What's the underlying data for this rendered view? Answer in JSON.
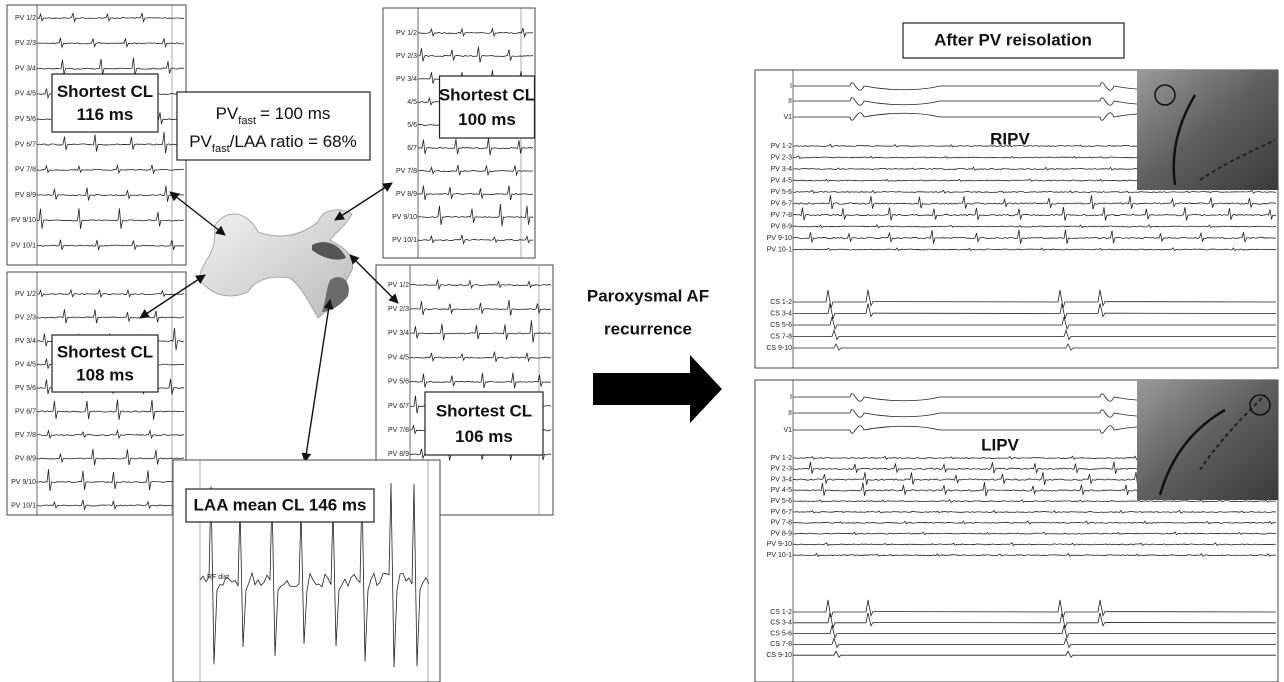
{
  "panels": [
    {
      "channels": [
        "PV 1/2",
        "PV 2/3",
        "PV 3/4",
        "PV 4/5",
        "PV 5/6",
        "PV 6/7",
        "PV 7/8",
        "PV 8/9",
        "PV 9/10",
        "PV 10/1"
      ],
      "callout": [
        "Shortest CL",
        "116 ms"
      ]
    },
    {
      "channels": [
        "PV 1/2",
        "PV 2/3",
        "PV 3/4",
        "4/5",
        "5/6",
        "6/7",
        "PV 7/8",
        "PV 8/9",
        "PV 9/10",
        "PV 10/1"
      ],
      "callout": [
        "Shortest CL",
        "100 ms"
      ]
    },
    {
      "channels": [
        "PV 1/2",
        "PV 2/3",
        "PV 3/4",
        "PV 4/5",
        "PV 5/6",
        "PV 6/7",
        "PV 7/8",
        "PV 8/9",
        "PV 9/10",
        "PV 10/1"
      ],
      "callout": [
        "Shortest CL",
        "108 ms"
      ]
    },
    {
      "channels": [
        "PV 1/2",
        "PV 2/3",
        "PV 3/4",
        "PV 4/5",
        "PV 5/6",
        "PV 6/7",
        "PV 7/8",
        "PV 8/9"
      ],
      "callout": [
        "Shortest CL",
        "106 ms"
      ]
    }
  ],
  "summary": {
    "line1": [
      "PV",
      "fast",
      "= 100 ms"
    ],
    "line2": [
      "PV",
      "fast",
      "/LAA ratio = 68%"
    ]
  },
  "laa": {
    "callout": "LAA mean CL 146 ms",
    "channel": "RF dist"
  },
  "transition": [
    "Paroxysmal AF",
    "recurrence"
  ],
  "after": {
    "title": "After PV reisolation",
    "panels": [
      {
        "label": "RIPV",
        "channels": [
          "I",
          "II",
          "V1",
          "PV 1-2",
          "PV 2-3",
          "PV 3-4",
          "PV 4-5",
          "PV 5-6",
          "PV 6-7",
          "PV 7-8",
          "PV 8-9",
          "PV 9-10",
          "PV 10-1",
          "CS 1-2",
          "CS 3-4",
          "CS 5-6",
          "CS 7-8",
          "CS 9-10"
        ]
      },
      {
        "label": "LIPV",
        "channels": [
          "I",
          "II",
          "V1",
          "PV 1-2",
          "PV 2-3",
          "PV 3-4",
          "PV 4-5",
          "PV 5-6",
          "PV 6-7",
          "PV 7-8",
          "PV 8-9",
          "PV 9-10",
          "PV 10-1",
          "CS 1-2",
          "CS 3-4",
          "CS 5-6",
          "CS 7-8",
          "CS 9-10"
        ]
      }
    ]
  }
}
